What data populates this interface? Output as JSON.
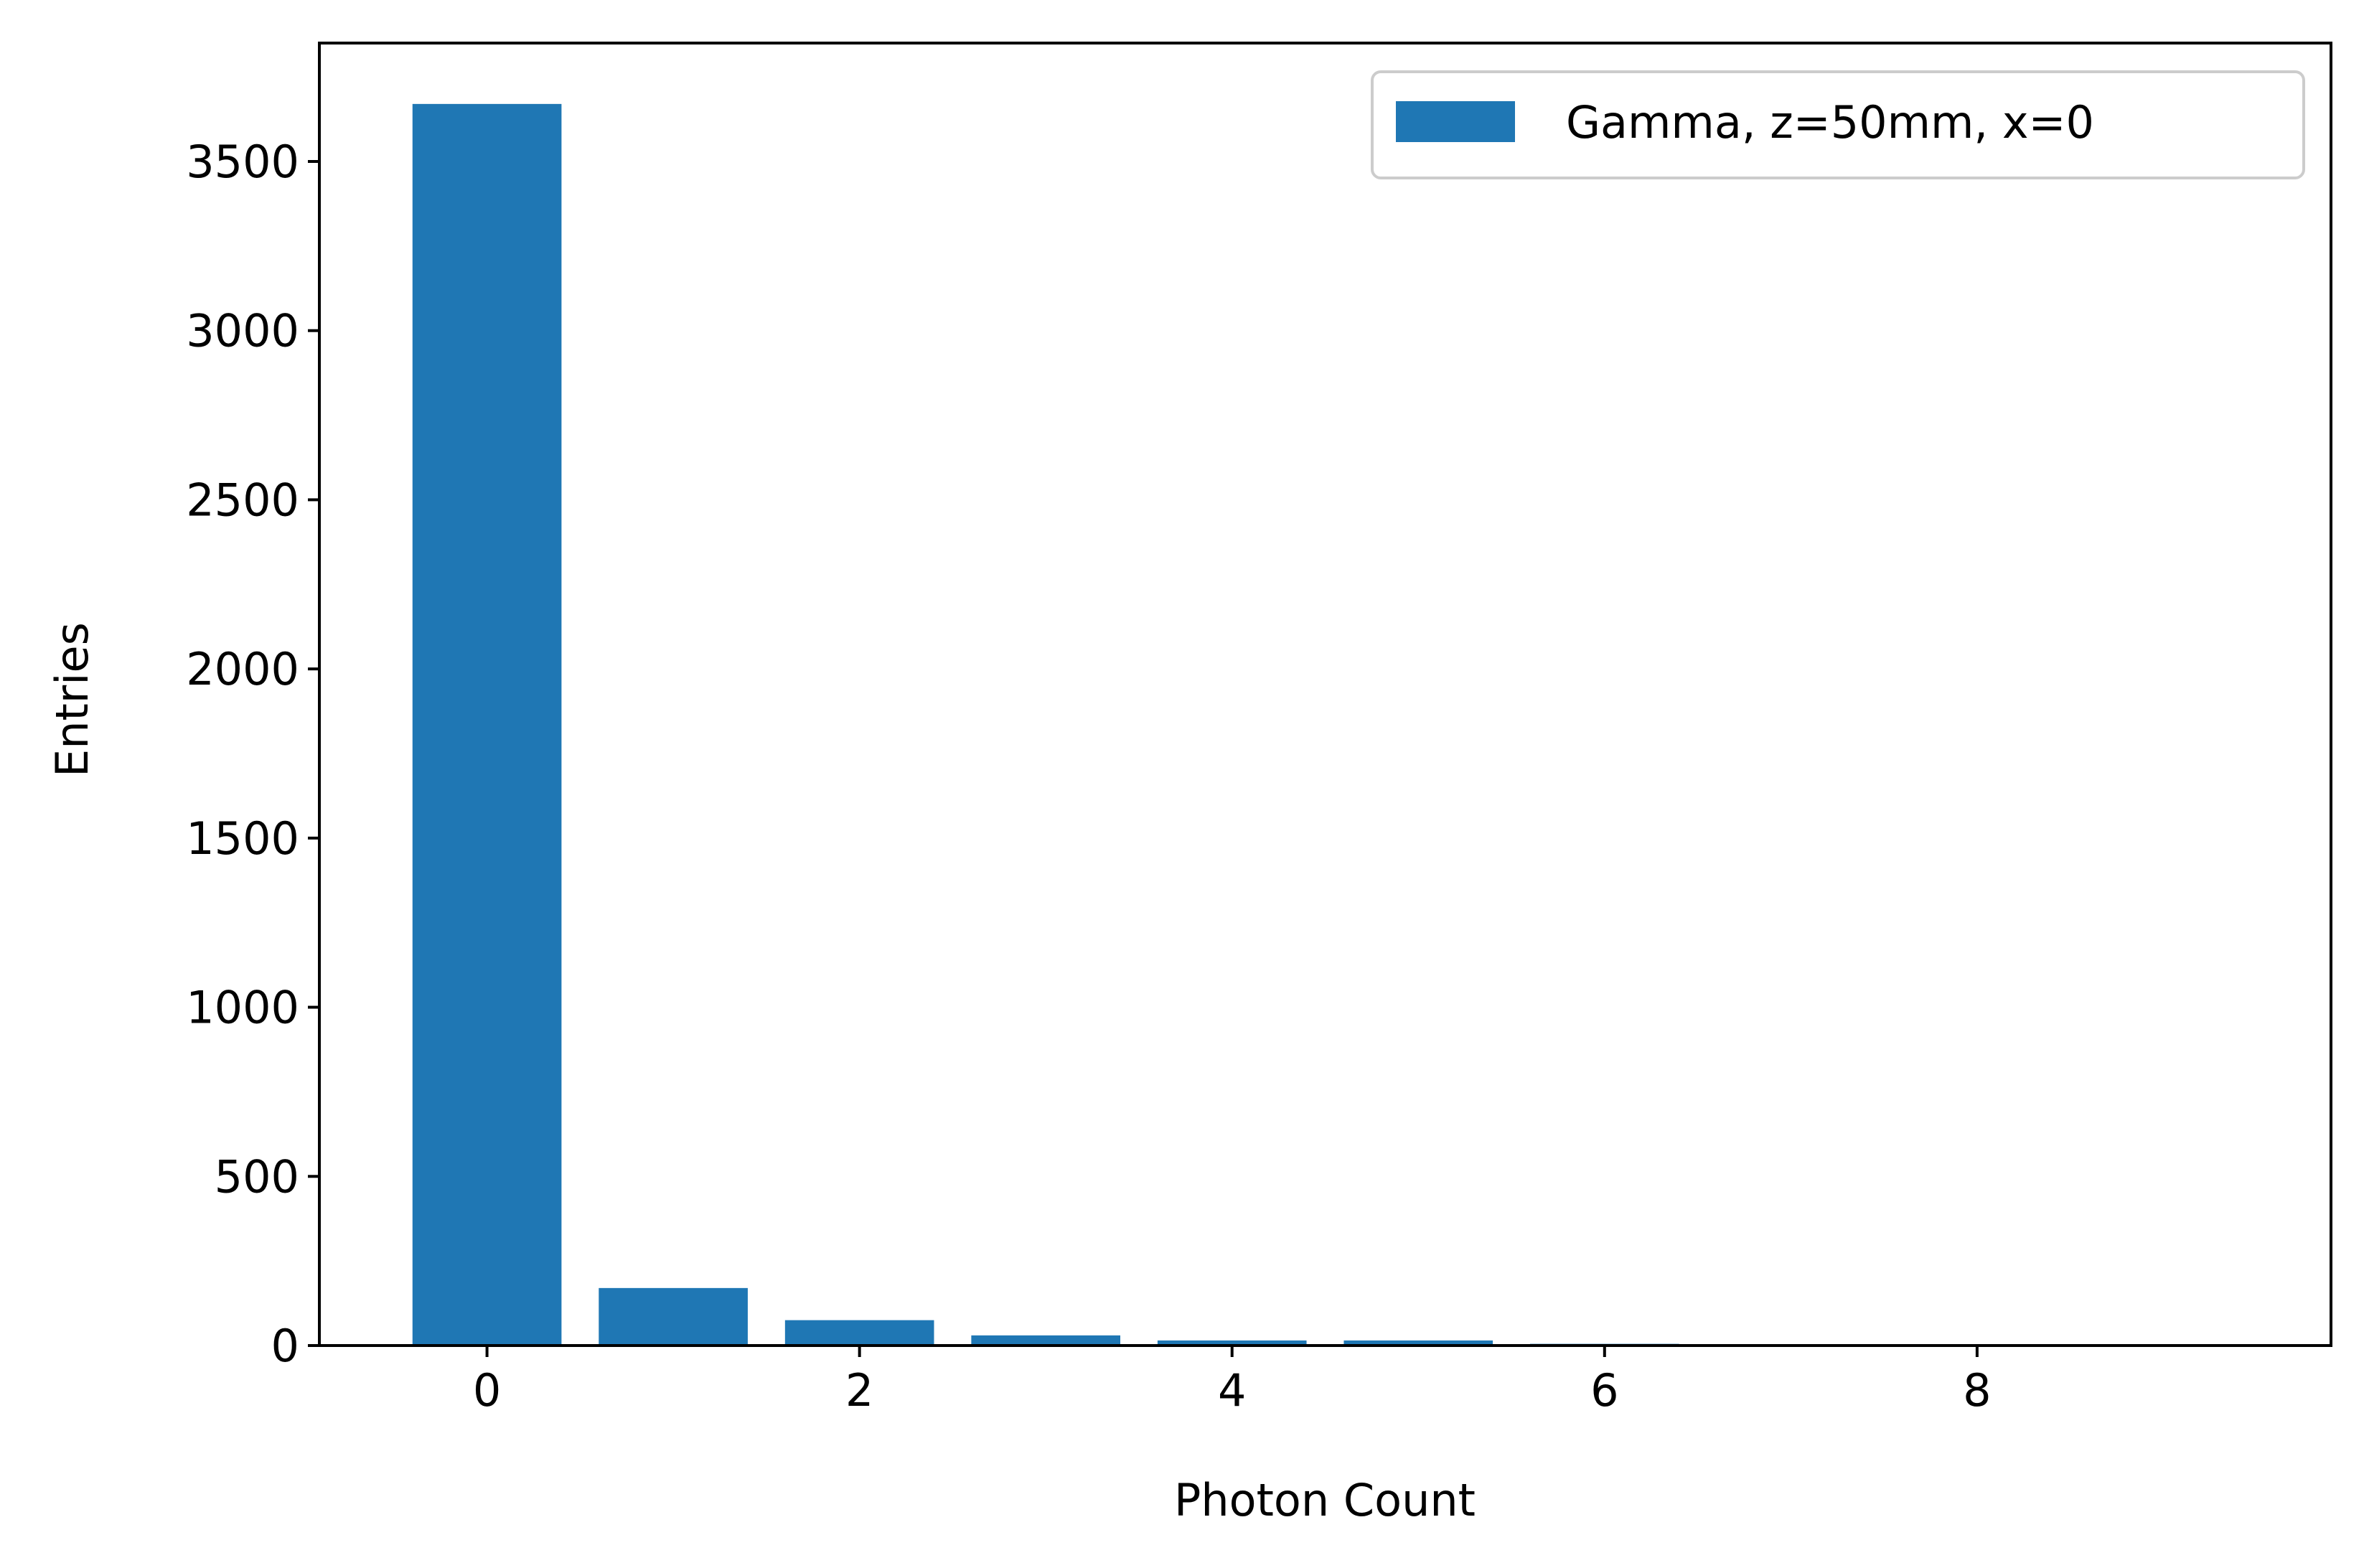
{
  "chart_data": {
    "type": "bar",
    "title": "",
    "xlabel": "Photon Count",
    "ylabel": "Entries",
    "xlim": [
      -0.9,
      9.9
    ],
    "ylim": [
      0,
      3850
    ],
    "x_ticks": [
      0,
      2,
      4,
      6,
      8
    ],
    "y_ticks": [
      0,
      500,
      1000,
      1500,
      2000,
      2500,
      3000,
      3500
    ],
    "bar_width": 0.8,
    "grid": false,
    "legend": {
      "position": "upper right",
      "entries": [
        "Gamma, z=50mm, x=0"
      ]
    },
    "series": [
      {
        "name": "Gamma, z=50mm, x=0",
        "color": "#1f77b4",
        "x": [
          0,
          1,
          2,
          3,
          4,
          5,
          6,
          7,
          8,
          9
        ],
        "values": [
          3670,
          170,
          75,
          30,
          15,
          15,
          5,
          2,
          1,
          1
        ]
      }
    ]
  }
}
